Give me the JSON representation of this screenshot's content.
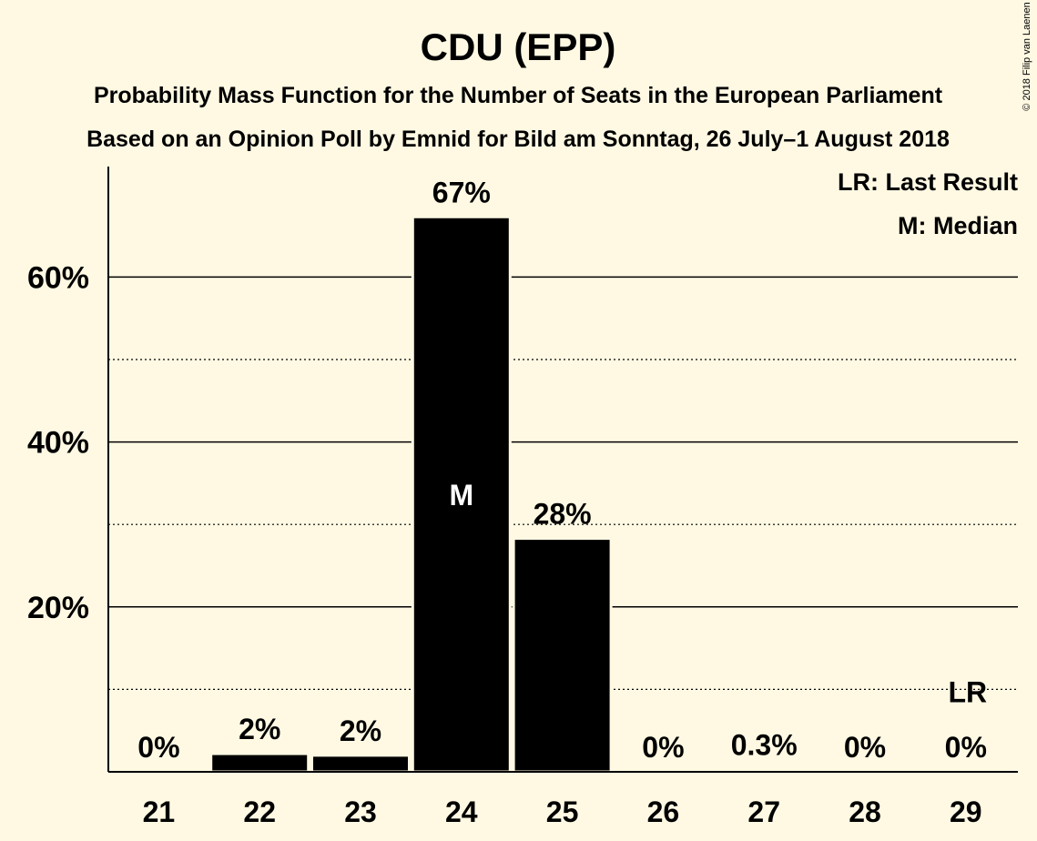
{
  "chart_data": {
    "type": "bar",
    "title": "CDU (EPP)",
    "subtitle_1": "Probability Mass Function for the Number of Seats in the European Parliament",
    "subtitle_2": "Based on an Opinion Poll by Emnid for Bild am Sonntag, 26 July–1 August 2018",
    "categories": [
      "21",
      "22",
      "23",
      "24",
      "25",
      "26",
      "27",
      "28",
      "29"
    ],
    "values": [
      0,
      2.2,
      2.0,
      67.3,
      28.3,
      0,
      0.3,
      0,
      0
    ],
    "value_labels": [
      "0%",
      "2%",
      "2%",
      "67%",
      "28%",
      "0%",
      "0.3%",
      "0%",
      "0%"
    ],
    "ylim": [
      0,
      73
    ],
    "yticks": [
      20,
      40,
      60
    ],
    "ytick_labels": [
      "20%",
      "40%",
      "60%"
    ],
    "minor_gridlines": [
      10,
      30,
      50
    ],
    "grid": true,
    "median_category": "24",
    "median_marker": "M",
    "last_result_category": "29",
    "last_result_marker": "LR",
    "legend": [
      "LR: Last Result",
      "M: Median"
    ],
    "legend_position": "top-right",
    "copyright": "© 2018 Filip van Laenen",
    "colors": {
      "background": "#FFF9E3",
      "bar": "#000000",
      "median_text": "#FFFFFF"
    }
  }
}
